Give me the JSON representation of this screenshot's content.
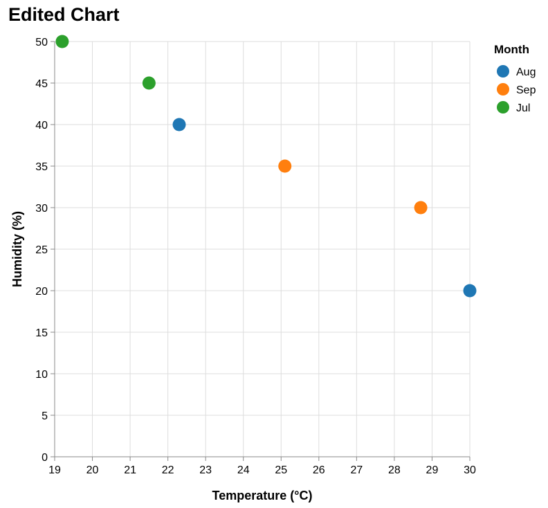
{
  "chart_data": {
    "type": "scatter",
    "title": "Edited Chart",
    "xlabel": "Temperature (°C)",
    "ylabel": "Humidity (%)",
    "xlim": [
      19,
      30
    ],
    "ylim": [
      0,
      50
    ],
    "x_ticks": [
      19,
      20,
      21,
      22,
      23,
      24,
      25,
      26,
      27,
      28,
      29,
      30
    ],
    "y_ticks": [
      0,
      5,
      10,
      15,
      20,
      25,
      30,
      35,
      40,
      45,
      50
    ],
    "grid": true,
    "legend": {
      "title": "Month",
      "position": "top-right",
      "items": [
        {
          "label": "Aug",
          "color": "#1f77b4"
        },
        {
          "label": "Sep",
          "color": "#ff7f0e"
        },
        {
          "label": "Jul",
          "color": "#2ca02c"
        }
      ]
    },
    "series": [
      {
        "name": "Aug",
        "color": "#1f77b4",
        "points": [
          {
            "x": 22.3,
            "y": 40
          },
          {
            "x": 30,
            "y": 20
          }
        ]
      },
      {
        "name": "Sep",
        "color": "#ff7f0e",
        "points": [
          {
            "x": 25.1,
            "y": 35
          },
          {
            "x": 28.7,
            "y": 30
          }
        ]
      },
      {
        "name": "Jul",
        "color": "#2ca02c",
        "points": [
          {
            "x": 19.2,
            "y": 50
          },
          {
            "x": 21.5,
            "y": 45
          }
        ]
      }
    ]
  }
}
